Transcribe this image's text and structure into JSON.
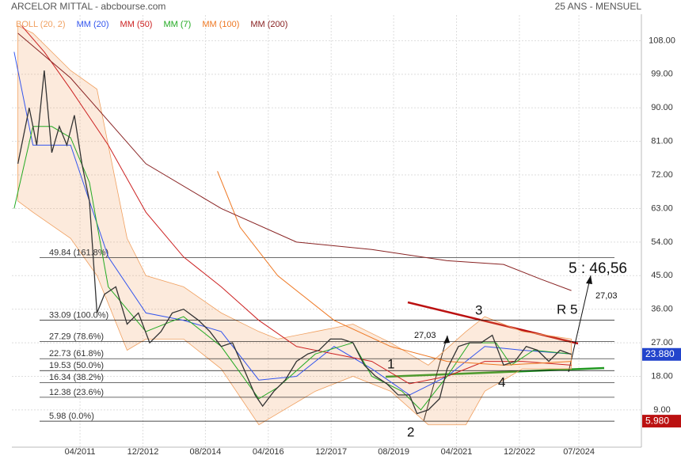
{
  "chart_data": {
    "type": "line",
    "title": "ARCELOR MITTAL - abcbourse.com",
    "subtitle": "25 ANS - MENSUEL",
    "xlim": [
      2009.44,
      2026.16
    ],
    "xticks": [
      {
        "value": 2011.25,
        "label": "04/2011"
      },
      {
        "value": 2012.92,
        "label": "12/2012"
      },
      {
        "value": 2014.58,
        "label": "08/2014"
      },
      {
        "value": 2016.25,
        "label": "04/2016"
      },
      {
        "value": 2017.92,
        "label": "12/2017"
      },
      {
        "value": 2019.58,
        "label": "08/2019"
      },
      {
        "value": 2021.25,
        "label": "04/2021"
      },
      {
        "value": 2022.92,
        "label": "12/2022"
      },
      {
        "value": 2024.5,
        "label": "07/2024"
      }
    ],
    "ylim": [
      -1,
      117
    ],
    "yticks": [
      {
        "value": 9,
        "label": "9.00"
      },
      {
        "value": 18,
        "label": "18.00"
      },
      {
        "value": 27,
        "label": "27.00"
      },
      {
        "value": 36,
        "label": "36.00"
      },
      {
        "value": 45,
        "label": "45.00"
      },
      {
        "value": 54,
        "label": "54.00"
      },
      {
        "value": 63,
        "label": "63.00"
      },
      {
        "value": 72,
        "label": "72.00"
      },
      {
        "value": 81,
        "label": "81.00"
      },
      {
        "value": 90,
        "label": "90.00"
      },
      {
        "value": 99,
        "label": "99.00"
      },
      {
        "value": 108,
        "label": "108.00"
      }
    ],
    "grid": true,
    "band": {
      "name": "BOLL (20, 2)",
      "color": "#f0a060",
      "x": [
        2009.6,
        2010.0,
        2011.0,
        2011.7,
        2012.5,
        2013.0,
        2014.0,
        2015.0,
        2016.0,
        2016.5,
        2017.5,
        2018.5,
        2019.5,
        2020.5,
        2021.5,
        2022.0,
        2023.0,
        2024.3
      ],
      "upper": [
        112,
        110,
        100,
        95,
        55,
        45,
        42,
        35,
        30,
        28,
        30,
        32,
        27,
        21,
        30,
        34,
        30,
        28
      ],
      "lower": [
        65,
        62,
        55,
        45,
        25,
        28,
        28,
        20,
        5,
        8,
        14,
        18,
        14,
        5,
        5,
        14,
        20,
        20
      ]
    },
    "series": [
      {
        "name": "MM (20)",
        "color": "#3355ee",
        "x": [
          2009.5,
          2010.0,
          2011.0,
          2012.0,
          2013.0,
          2014.0,
          2015.0,
          2016.0,
          2017.0,
          2018.0,
          2019.0,
          2020.0,
          2021.0,
          2022.0,
          2023.0,
          2024.3
        ],
        "values": [
          105,
          80,
          80,
          50,
          35,
          33,
          30,
          17,
          18,
          26,
          20,
          13,
          18,
          26,
          25,
          24
        ]
      },
      {
        "name": "MM (50)",
        "color": "#cc2222",
        "x": [
          2009.7,
          2010.3,
          2011.0,
          2012.0,
          2013.0,
          2014.0,
          2015.0,
          2016.0,
          2017.0,
          2018.0,
          2019.0,
          2020.0,
          2021.0,
          2022.0,
          2023.0,
          2024.3
        ],
        "values": [
          112,
          105,
          95,
          80,
          62,
          50,
          42,
          33,
          26,
          24,
          22,
          16,
          18,
          22,
          22,
          21
        ]
      },
      {
        "name": "MM (7)",
        "color": "#22aa22",
        "x": [
          2009.5,
          2010.0,
          2010.5,
          2011.0,
          2011.5,
          2012.0,
          2012.5,
          2013.0,
          2014.0,
          2015.0,
          2016.0,
          2016.5,
          2017.5,
          2018.5,
          2019.0,
          2019.8,
          2020.3,
          2021.0,
          2021.6,
          2022.3,
          2022.7,
          2023.3,
          2024.3
        ],
        "values": [
          63,
          85,
          85,
          82,
          70,
          42,
          36,
          30,
          34,
          26,
          12,
          15,
          24,
          27,
          18,
          14,
          9,
          18,
          27,
          27,
          21,
          25,
          24
        ]
      },
      {
        "name": "MM (7)",
        "color": "#22aa22",
        "x": [],
        "values": []
      },
      {
        "name": "MM (100)",
        "color": "#ee7722",
        "x": [
          2014.9,
          2015.5,
          2016.5,
          2018.0,
          2019.5,
          2021.0,
          2022.5,
          2024.3
        ],
        "values": [
          73,
          58,
          45,
          33,
          26,
          22,
          21,
          22
        ]
      },
      {
        "name": "MM (200)",
        "color": "#882222",
        "x": [
          2009.6,
          2011.0,
          2013.0,
          2015.0,
          2017.0,
          2019.0,
          2021.0,
          2022.5,
          2023.5,
          2024.3
        ],
        "values": [
          110,
          98,
          75,
          63,
          54,
          52,
          49,
          48,
          44,
          41
        ]
      },
      {
        "color": "#333333",
        "x": [
          2009.6,
          2009.9,
          2010.1,
          2010.3,
          2010.5,
          2010.7,
          2010.9,
          2011.1,
          2011.3,
          2011.5,
          2011.7,
          2011.9,
          2012.2,
          2012.5,
          2012.8,
          2013.1,
          2013.4,
          2013.7,
          2014.0,
          2014.4,
          2014.7,
          2015.0,
          2015.3,
          2015.6,
          2015.9,
          2016.1,
          2016.4,
          2016.7,
          2017.0,
          2017.3,
          2017.6,
          2017.9,
          2018.2,
          2018.5,
          2018.8,
          2019.1,
          2019.4,
          2019.7,
          2020.0,
          2020.2,
          2020.5,
          2020.8,
          2021.0,
          2021.3,
          2021.6,
          2021.9,
          2022.2,
          2022.5,
          2022.8,
          2023.1,
          2023.4,
          2023.7,
          2024.0,
          2024.3
        ],
        "values": [
          75,
          90,
          80,
          100,
          78,
          85,
          80,
          88,
          75,
          65,
          35,
          40,
          42,
          32,
          35,
          27,
          30,
          35,
          36,
          33,
          30,
          26,
          27,
          20,
          13,
          10,
          14,
          17,
          22,
          24,
          25,
          28,
          28,
          27,
          21,
          18,
          16,
          13,
          13,
          8,
          9,
          12,
          20,
          26,
          27,
          27,
          29,
          21,
          22,
          26,
          25,
          22,
          25,
          23.88
        ]
      }
    ],
    "fib_levels": [
      {
        "value": 49.84,
        "label": "49.84 (161.8%)"
      },
      {
        "value": 33.09,
        "label": "33.09 (100.0%)"
      },
      {
        "value": 27.29,
        "label": "27.29 (78.6%)"
      },
      {
        "value": 22.73,
        "label": "22.73 (61.8%)"
      },
      {
        "value": 19.53,
        "label": "19.53 (50.0%)"
      },
      {
        "value": 16.34,
        "label": "16.34 (38.2%)"
      },
      {
        "value": 12.38,
        "label": "12.38 (23.6%)"
      },
      {
        "value": 5.98,
        "label": "5.98 (0.0%)"
      }
    ],
    "price_tags": [
      {
        "value": 23.88,
        "label": "23.880",
        "color": "#2244cc"
      },
      {
        "value": 5.98,
        "label": "5.980",
        "color": "#bb1111"
      }
    ],
    "annotations": [
      "27,03",
      "27,03",
      "5 : 46,56",
      "R 5",
      "1",
      "2",
      "3",
      "4"
    ]
  }
}
